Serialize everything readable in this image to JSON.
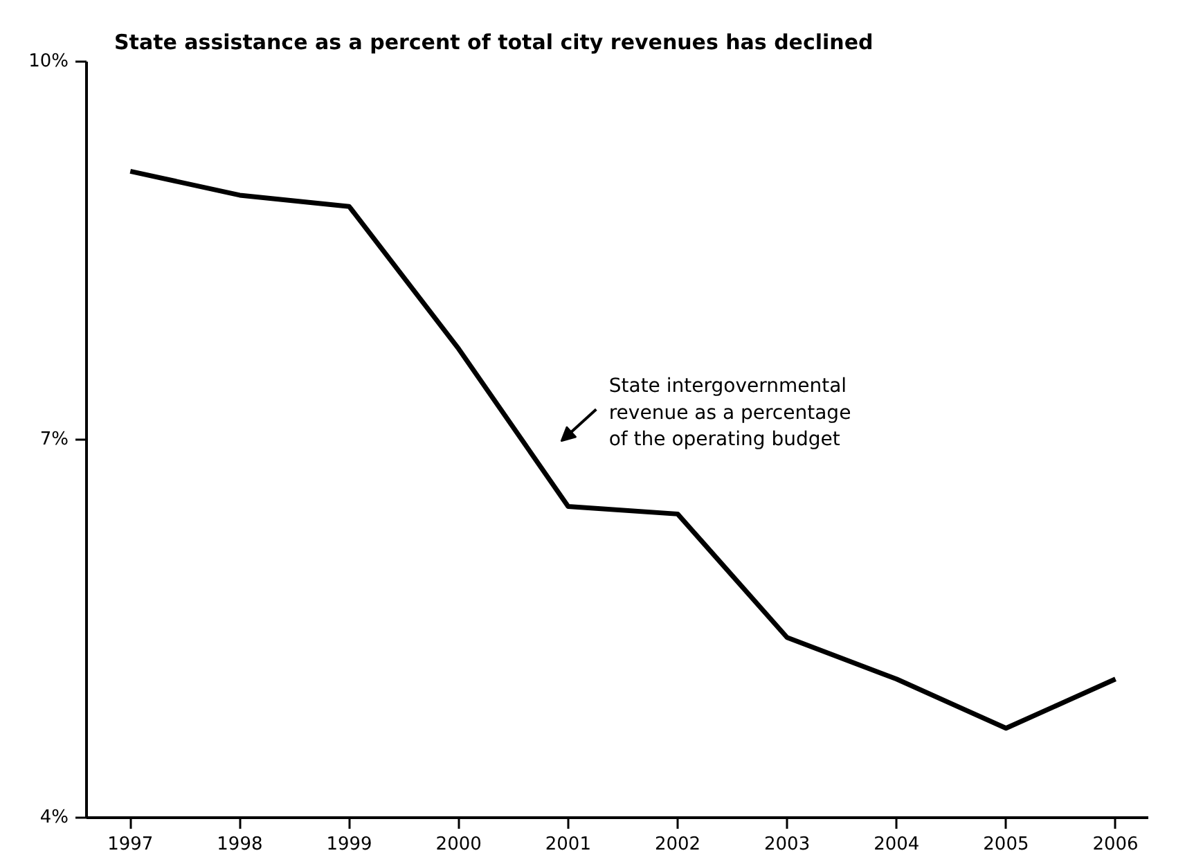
{
  "chart_data": {
    "type": "line",
    "title": "State assistance as a percent of total city revenues has declined",
    "x": [
      1997,
      1998,
      1999,
      2000,
      2001,
      2002,
      2003,
      2004,
      2005,
      2006
    ],
    "xlim": [
      1996.6,
      2006.3
    ],
    "xticks": [
      1997,
      1998,
      1999,
      2000,
      2001,
      2002,
      2003,
      2004,
      2005,
      2006
    ],
    "ylim": [
      4,
      10
    ],
    "yticks": [
      {
        "value": 4,
        "label": "4%"
      },
      {
        "value": 7,
        "label": "7%"
      },
      {
        "value": 10,
        "label": "10%"
      }
    ],
    "series": [
      {
        "color": "#000000",
        "values": [
          9.13,
          8.94,
          8.85,
          7.72,
          6.47,
          6.41,
          5.43,
          5.1,
          4.71,
          5.1
        ]
      }
    ],
    "annotations": [
      "State intergovernmental\nrevenue as a percentage\nof the operating budget"
    ],
    "grid": false,
    "marker": "none",
    "line_style": "solid"
  }
}
